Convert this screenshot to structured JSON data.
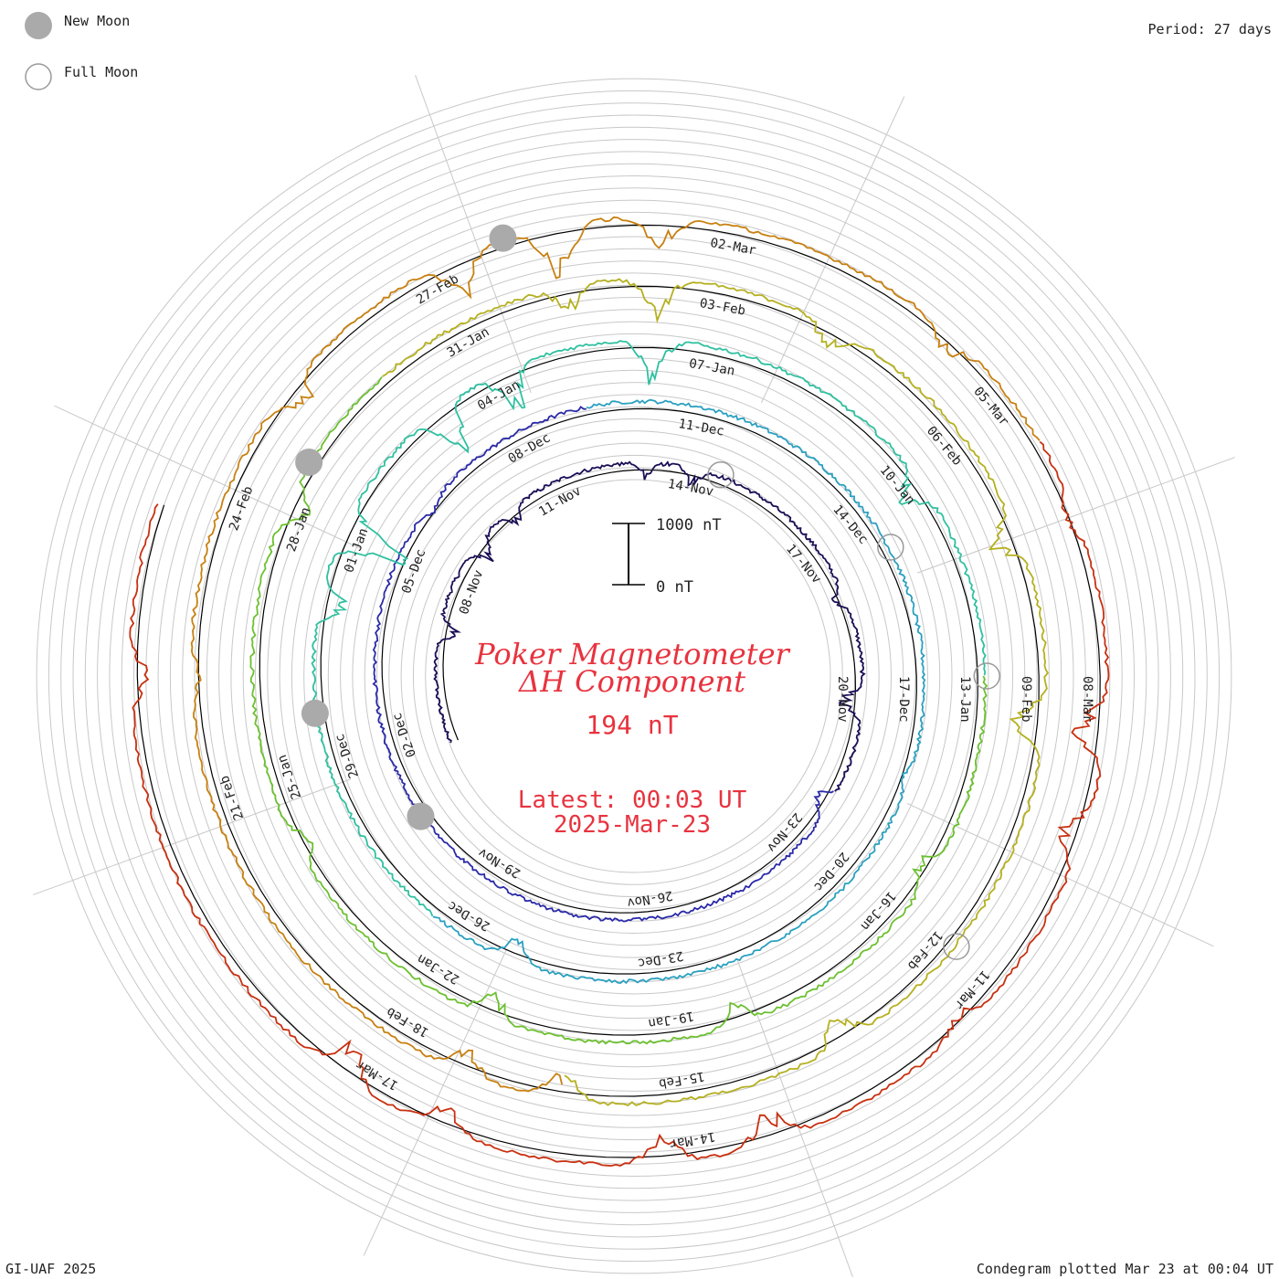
{
  "legend": {
    "new_moon_label": "New Moon",
    "full_moon_label": "Full Moon"
  },
  "period_label": "Period: 27 days",
  "footer_left": "GI-UAF 2025",
  "footer_right": "Condegram plotted Mar 23 at 00:04 UT",
  "title": {
    "line1": "Poker Magnetometer",
    "line2": "ΔH Component"
  },
  "current_value": "194 nT",
  "latest": {
    "line1": "Latest: 00:03 UT",
    "line2": "2025-Mar-23"
  },
  "scale": {
    "top_label": "1000 nT",
    "bottom_label": "0 nT"
  },
  "colors": {
    "title_red": "#e8333f",
    "new_moon_fill": "#aaaaaa",
    "grid": "#c8c8c8",
    "baseline": "#000000"
  },
  "chart_data": {
    "type": "line",
    "subtype": "spiral condegram",
    "period_days": 27,
    "units": "nT",
    "scale_reference_nT": [
      0,
      1000
    ],
    "start_date": "2024-11-05",
    "end_date": "2025-03-23",
    "series_colors": [
      "#1a0e55",
      "#2a2aa8",
      "#2aa0c0",
      "#2fc0a0",
      "#6cc030",
      "#b5b020",
      "#c88010",
      "#c83010"
    ],
    "date_labels": [
      "08-Nov",
      "11-Nov",
      "14-Nov",
      "17-Nov",
      "20-Nov",
      "23-Nov",
      "26-Nov",
      "29-Nov",
      "02-Dec",
      "05-Dec",
      "08-Dec",
      "11-Dec",
      "14-Dec",
      "17-Dec",
      "20-Dec",
      "23-Dec",
      "26-Dec",
      "29-Dec",
      "01-Jan",
      "04-Jan",
      "07-Jan",
      "10-Jan",
      "13-Jan",
      "16-Jan",
      "19-Jan",
      "22-Jan",
      "25-Jan",
      "28-Jan",
      "31-Jan",
      "03-Feb",
      "06-Feb",
      "09-Feb",
      "12-Feb",
      "15-Feb",
      "18-Feb",
      "21-Feb",
      "24-Feb",
      "27-Feb",
      "02-Mar",
      "05-Mar",
      "08-Mar",
      "11-Mar",
      "14-Mar",
      "17-Mar"
    ],
    "new_moons": [
      "2024-12-01",
      "2024-12-30",
      "2025-01-29",
      "2025-02-28"
    ],
    "full_moons": [
      "2024-11-15",
      "2024-12-15",
      "2025-01-13",
      "2025-02-12"
    ],
    "disturbances": [
      {
        "date": "2024-11-07",
        "drop_nT": 320
      },
      {
        "date": "2024-11-09",
        "drop_nT": 380
      },
      {
        "date": "2024-11-10",
        "drop_nT": 260
      },
      {
        "date": "2024-11-13",
        "drop_nT": 240
      },
      {
        "date": "2024-11-14",
        "drop_nT": 300
      },
      {
        "date": "2024-11-18",
        "drop_nT": 220
      },
      {
        "date": "2024-11-20",
        "drop_nT": 420
      },
      {
        "date": "2024-11-22",
        "drop_nT": 300
      },
      {
        "date": "2024-12-06",
        "drop_nT": 180
      },
      {
        "date": "2024-12-18",
        "drop_nT": 150
      },
      {
        "date": "2024-12-25",
        "drop_nT": 420
      },
      {
        "date": "2024-12-31",
        "drop_nT": 520
      },
      {
        "date": "2025-01-01",
        "drop_nT": 1200
      },
      {
        "date": "2025-01-03",
        "drop_nT": 900
      },
      {
        "date": "2025-01-04",
        "drop_nT": 800
      },
      {
        "date": "2025-01-06",
        "drop_nT": 700
      },
      {
        "date": "2025-01-10",
        "drop_nT": 450
      },
      {
        "date": "2025-01-15",
        "drop_nT": 300
      },
      {
        "date": "2025-01-18",
        "drop_nT": 350
      },
      {
        "date": "2025-01-21",
        "drop_nT": 400
      },
      {
        "date": "2025-01-24",
        "drop_nT": 250
      },
      {
        "date": "2025-01-28",
        "drop_nT": 350
      },
      {
        "date": "2025-02-01",
        "drop_nT": 400
      },
      {
        "date": "2025-02-02",
        "drop_nT": 700
      },
      {
        "date": "2025-02-04",
        "drop_nT": 350
      },
      {
        "date": "2025-02-07",
        "drop_nT": 500
      },
      {
        "date": "2025-02-09",
        "drop_nT": 650
      },
      {
        "date": "2025-02-13",
        "drop_nT": 450
      },
      {
        "date": "2025-02-16",
        "drop_nT": 500
      },
      {
        "date": "2025-02-17",
        "drop_nT": 400
      },
      {
        "date": "2025-02-22",
        "drop_nT": 150
      },
      {
        "date": "2025-02-25",
        "drop_nT": 400
      },
      {
        "date": "2025-02-27",
        "drop_nT": 600
      },
      {
        "date": "2025-02-28",
        "drop_nT": 900
      },
      {
        "date": "2025-03-01",
        "drop_nT": 500
      },
      {
        "date": "2025-03-04",
        "drop_nT": 300
      },
      {
        "date": "2025-03-06",
        "drop_nT": 200
      },
      {
        "date": "2025-03-08",
        "drop_nT": 550
      },
      {
        "date": "2025-03-09",
        "drop_nT": 450
      },
      {
        "date": "2025-03-11",
        "drop_nT": 250
      },
      {
        "date": "2025-03-13",
        "drop_nT": 500
      },
      {
        "date": "2025-03-14",
        "drop_nT": 450
      },
      {
        "date": "2025-03-16",
        "drop_nT": 400
      },
      {
        "date": "2025-03-17",
        "drop_nT": 600
      },
      {
        "date": "2025-03-21",
        "drop_nT": 300
      }
    ]
  }
}
